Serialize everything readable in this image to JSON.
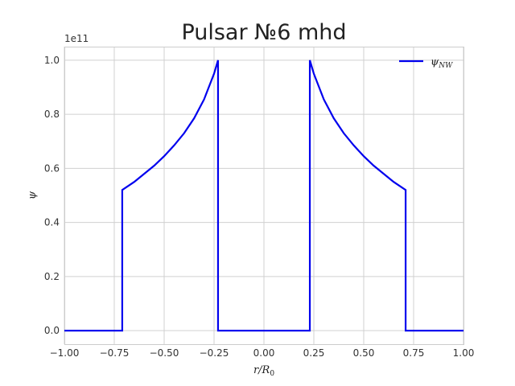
{
  "chart_data": {
    "type": "line",
    "title": "Pulsar №6 mhd",
    "xlabel_main": "r/R",
    "xlabel_sub": "0",
    "ylabel": "ψ",
    "offset_text": "1e11",
    "xlim": [
      -1.0,
      1.0
    ],
    "ylim": [
      -0.05,
      1.05
    ],
    "y_scale_exponent": 11,
    "grid": true,
    "legend_placement": "top-right",
    "x_ticks": [
      -1.0,
      -0.75,
      -0.5,
      -0.25,
      0.0,
      0.25,
      0.5,
      0.75,
      1.0
    ],
    "x_tick_labels": [
      "−1.00",
      "−0.75",
      "−0.50",
      "−0.25",
      "0.00",
      "0.25",
      "0.50",
      "0.75",
      "1.00"
    ],
    "y_ticks": [
      0.0,
      0.2,
      0.4,
      0.6,
      0.8,
      1.0
    ],
    "y_tick_labels": [
      "0.0",
      "0.2",
      "0.4",
      "0.6",
      "0.8",
      "1.0"
    ],
    "series": [
      {
        "name_main": "ψ",
        "name_sub": "NW",
        "color": "#0000ee",
        "x": [
          -1.0,
          -0.71,
          -0.71,
          -0.65,
          -0.6,
          -0.55,
          -0.5,
          -0.45,
          -0.4,
          -0.35,
          -0.3,
          -0.25,
          -0.23,
          -0.23,
          0.23,
          0.23,
          0.25,
          0.3,
          0.35,
          0.4,
          0.45,
          0.5,
          0.55,
          0.6,
          0.65,
          0.71,
          0.71,
          1.0
        ],
        "y": [
          0.0,
          0.0,
          0.52,
          0.55,
          0.58,
          0.61,
          0.645,
          0.685,
          0.73,
          0.785,
          0.855,
          0.95,
          1.0,
          0.0,
          0.0,
          1.0,
          0.95,
          0.855,
          0.785,
          0.73,
          0.685,
          0.645,
          0.61,
          0.58,
          0.55,
          0.52,
          0.0,
          0.0
        ]
      }
    ]
  }
}
